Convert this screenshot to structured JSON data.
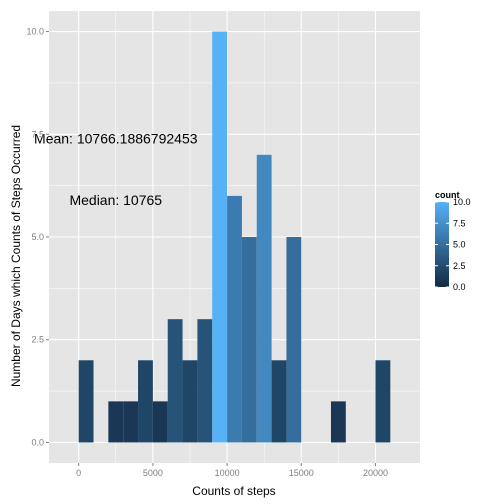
{
  "chart_data": {
    "type": "bar",
    "subtype": "histogram",
    "xlabel": "Counts of steps",
    "ylabel": "Number of Days which Counts of Steps Occurred",
    "xlim": [
      -2000,
      23000
    ],
    "ylim": [
      -0.5,
      10.5
    ],
    "x_ticks": [
      0,
      5000,
      10000,
      15000,
      20000
    ],
    "x_tick_labels": [
      "0",
      "5000",
      "10000",
      "15000",
      "20000"
    ],
    "y_ticks": [
      0,
      2.5,
      5,
      7.5,
      10
    ],
    "y_tick_labels": [
      "0.0",
      "2.5",
      "5.0",
      "7.5",
      "10.0"
    ],
    "bin_width": 1000,
    "bins": [
      {
        "x_min": 0,
        "x_max": 1000,
        "count": 2
      },
      {
        "x_min": 2000,
        "x_max": 3000,
        "count": 1
      },
      {
        "x_min": 3000,
        "x_max": 4000,
        "count": 1
      },
      {
        "x_min": 4000,
        "x_max": 5000,
        "count": 2
      },
      {
        "x_min": 5000,
        "x_max": 6000,
        "count": 1
      },
      {
        "x_min": 6000,
        "x_max": 7000,
        "count": 3
      },
      {
        "x_min": 7000,
        "x_max": 8000,
        "count": 2
      },
      {
        "x_min": 8000,
        "x_max": 9000,
        "count": 3
      },
      {
        "x_min": 9000,
        "x_max": 10000,
        "count": 10
      },
      {
        "x_min": 10000,
        "x_max": 11000,
        "count": 6
      },
      {
        "x_min": 11000,
        "x_max": 12000,
        "count": 5
      },
      {
        "x_min": 12000,
        "x_max": 13000,
        "count": 7
      },
      {
        "x_min": 13000,
        "x_max": 14000,
        "count": 2
      },
      {
        "x_min": 14000,
        "x_max": 15000,
        "count": 5
      },
      {
        "x_min": 17000,
        "x_max": 18000,
        "count": 1
      },
      {
        "x_min": 20000,
        "x_max": 21000,
        "count": 2
      }
    ],
    "annotations": [
      {
        "text": "Mean: 10766.1886792453",
        "x": 2500,
        "y": 7.4
      },
      {
        "text": "Median: 10765",
        "x": 2500,
        "y": 5.9
      }
    ],
    "legend": {
      "title": "count",
      "position": "right",
      "labels": [
        "10.0",
        "7.5",
        "5.0",
        "2.5",
        "0.0"
      ],
      "values": [
        10,
        7.5,
        5,
        2.5,
        0
      ],
      "low_color": "#132B43",
      "high_color": "#56B1F7"
    },
    "grid": true,
    "panel_color": "#E5E5E5",
    "grid_color": "#FFFFFF"
  }
}
